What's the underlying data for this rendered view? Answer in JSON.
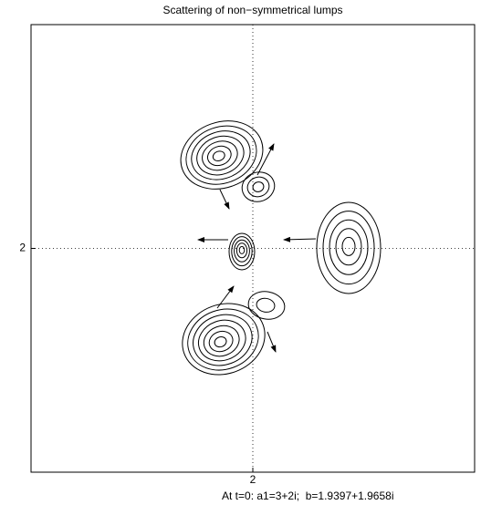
{
  "chart_data": {
    "type": "contour",
    "title": "Scattering of non−symmetrical lumps",
    "xlabel": "At t=0: a1=3+2i;  b=1.9397+1.9658i",
    "xlim": [
      0,
      4
    ],
    "ylim": [
      0,
      4
    ],
    "xticks": [
      2
    ],
    "yticks": [
      2
    ],
    "grid": true
  }
}
